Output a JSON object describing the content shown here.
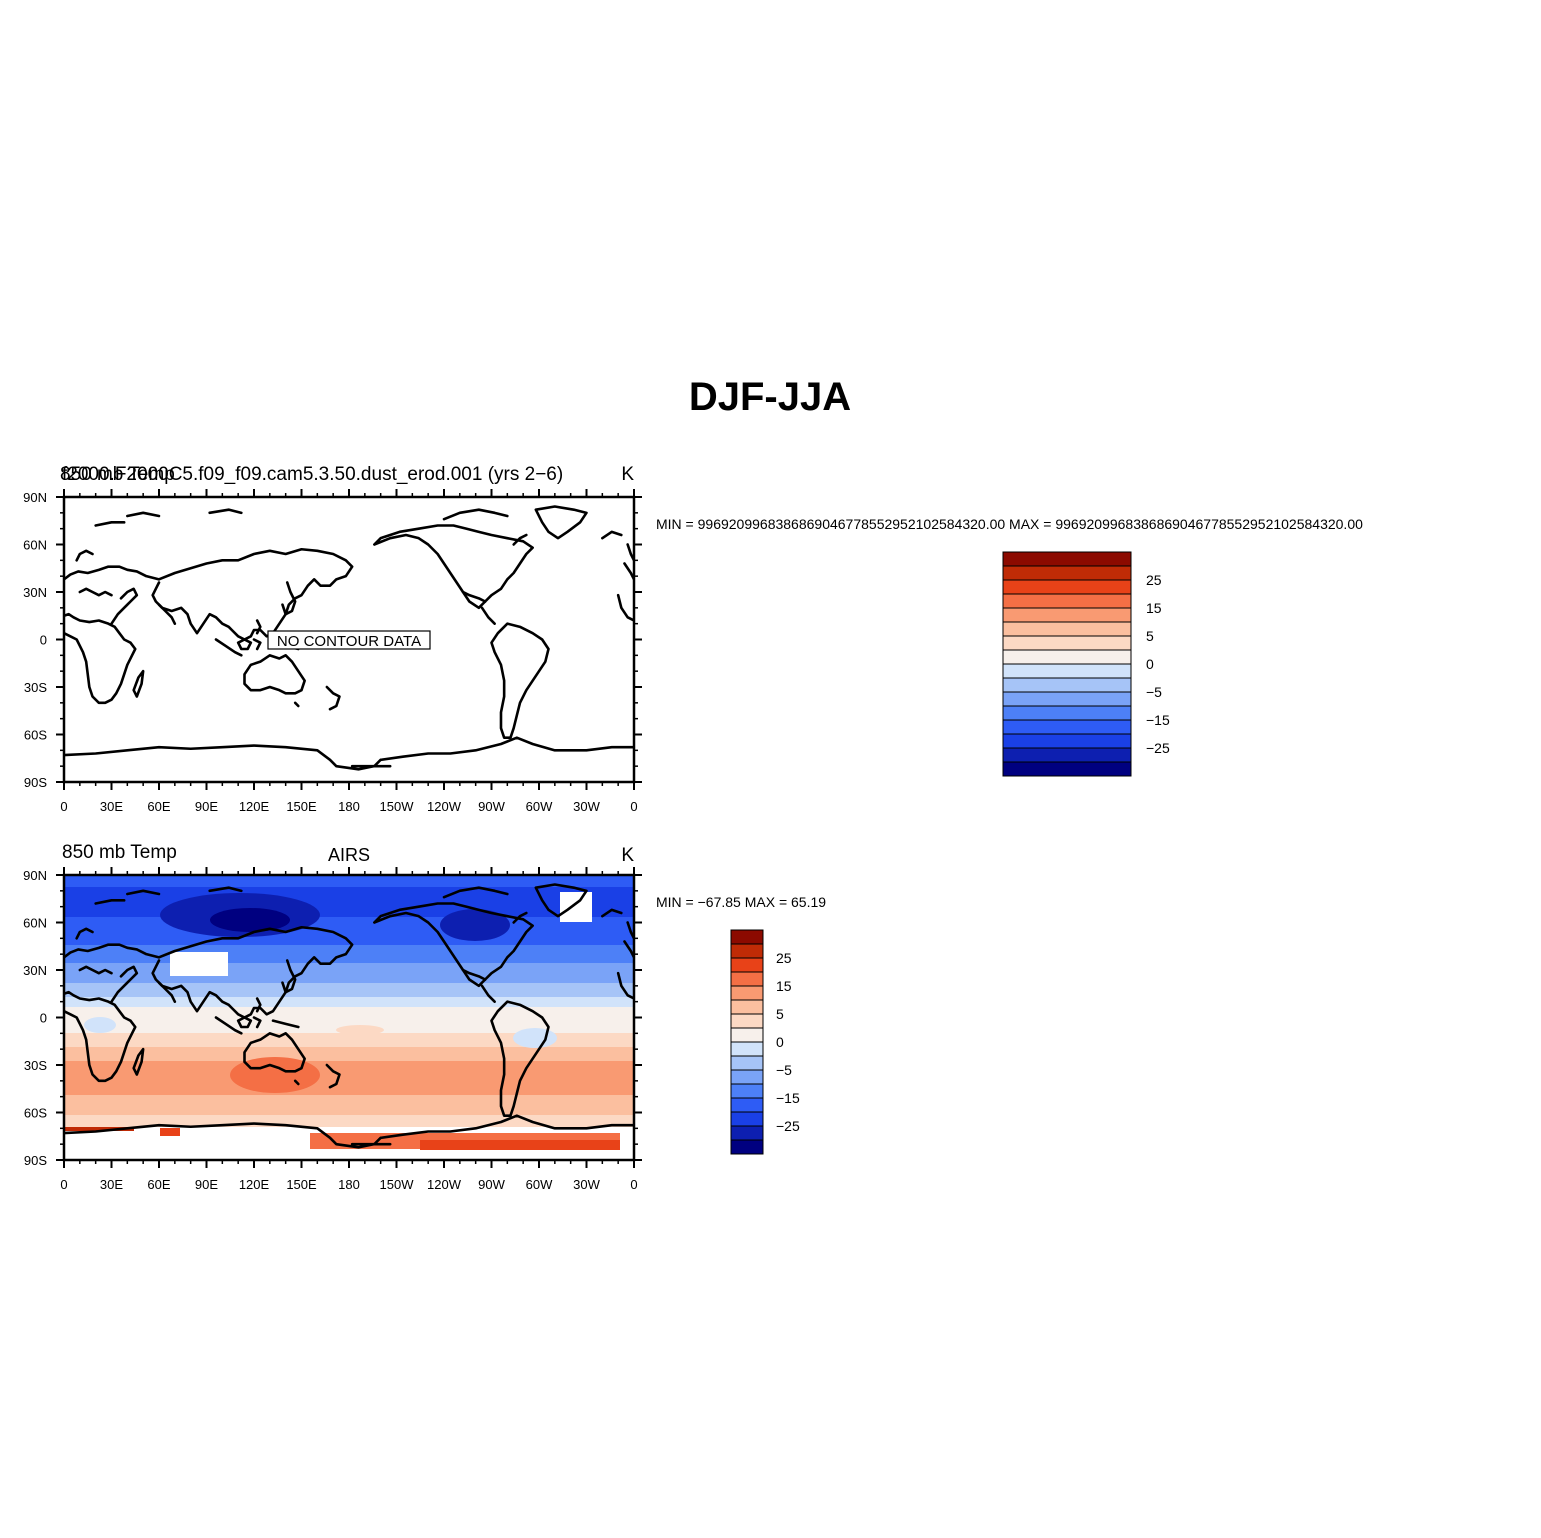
{
  "main_title": "DJF-JJA",
  "lon_ticks": [
    "0",
    "30E",
    "60E",
    "90E",
    "120E",
    "150E",
    "180",
    "150W",
    "120W",
    "90W",
    "60W",
    "30W",
    "0"
  ],
  "lat_ticks": [
    "90N",
    "60N",
    "30N",
    "0",
    "30S",
    "60S",
    "90S"
  ],
  "colorbar_labels": [
    "25",
    "15",
    "5",
    "0",
    "−5",
    "−15",
    "−25"
  ],
  "colorbar_levels": [
    -30,
    -25,
    -20,
    -15,
    -10,
    -5,
    -2,
    0,
    2,
    5,
    10,
    15,
    20,
    25,
    30
  ],
  "colorbar_colors": [
    "#000080",
    "#0d1fb0",
    "#1a40e6",
    "#2e5cf5",
    "#4d80f7",
    "#7aa3f7",
    "#a6c4f7",
    "#d1e3fa",
    "#f7f0eb",
    "#fcd9c4",
    "#fbbf9f",
    "#f99a72",
    "#f46f45",
    "#e84218",
    "#c02b06",
    "#8c0a00"
  ],
  "panels": [
    {
      "left_title": "850 mb Temp",
      "center_title": "",
      "right_title": "K",
      "overlay_title": "f2000.F2000C5.f09_f09.cam5.3.50.dust_erod.001 (yrs 2−6)",
      "stats": "MIN = 99692099683868690467785529521025843 20.00 MAX = 99692099683868690467785529521025843 20.00",
      "no_data_label": "NO CONTOUR DATA"
    },
    {
      "left_title": "850 mb Temp",
      "center_title": "AIRS",
      "right_title": "K",
      "overlay_title": "",
      "stats": "MIN = −67.85 MAX =   65.19",
      "no_data_label": ""
    }
  ],
  "map_field": {
    "variable": "850 mb Temp",
    "units": "K",
    "min": -67.85,
    "max": 65.19
  }
}
